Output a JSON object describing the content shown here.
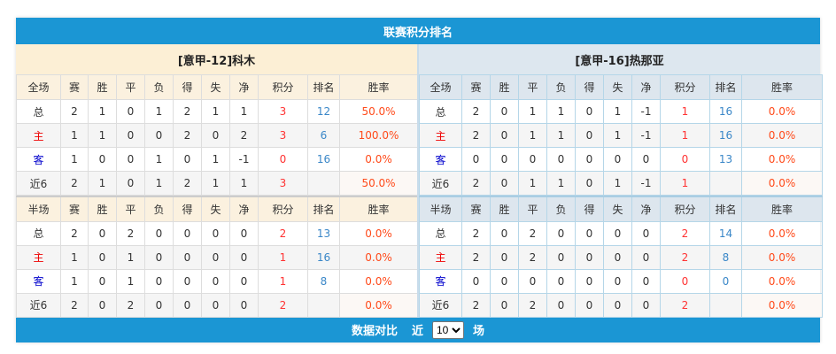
{
  "title": "联赛积分排名",
  "headers": [
    "赛",
    "胜",
    "平",
    "负",
    "得",
    "失",
    "净",
    "积分",
    "排名",
    "胜率"
  ],
  "row_labels": [
    "总",
    "主",
    "客",
    "近6"
  ],
  "teams": [
    {
      "name": "[意甲-12]科木",
      "full": {
        "label": "全场",
        "rows": [
          [
            "2",
            "1",
            "0",
            "1",
            "2",
            "1",
            "1",
            "3",
            "12",
            "50.0%"
          ],
          [
            "1",
            "1",
            "0",
            "0",
            "2",
            "0",
            "2",
            "3",
            "6",
            "100.0%"
          ],
          [
            "1",
            "0",
            "0",
            "1",
            "0",
            "1",
            "-1",
            "0",
            "16",
            "0.0%"
          ],
          [
            "2",
            "1",
            "0",
            "1",
            "2",
            "1",
            "1",
            "3",
            "",
            "50.0%"
          ]
        ]
      },
      "half": {
        "label": "半场",
        "rows": [
          [
            "2",
            "0",
            "2",
            "0",
            "0",
            "0",
            "0",
            "2",
            "13",
            "0.0%"
          ],
          [
            "1",
            "0",
            "1",
            "0",
            "0",
            "0",
            "0",
            "1",
            "16",
            "0.0%"
          ],
          [
            "1",
            "0",
            "1",
            "0",
            "0",
            "0",
            "0",
            "1",
            "8",
            "0.0%"
          ],
          [
            "2",
            "0",
            "2",
            "0",
            "0",
            "0",
            "0",
            "2",
            "",
            "0.0%"
          ]
        ]
      }
    },
    {
      "name": "[意甲-16]热那亚",
      "full": {
        "label": "全场",
        "rows": [
          [
            "2",
            "0",
            "1",
            "1",
            "0",
            "1",
            "-1",
            "1",
            "16",
            "0.0%"
          ],
          [
            "2",
            "0",
            "1",
            "1",
            "0",
            "1",
            "-1",
            "1",
            "16",
            "0.0%"
          ],
          [
            "0",
            "0",
            "0",
            "0",
            "0",
            "0",
            "0",
            "0",
            "13",
            "0.0%"
          ],
          [
            "2",
            "0",
            "1",
            "1",
            "0",
            "1",
            "-1",
            "1",
            "",
            "0.0%"
          ]
        ]
      },
      "half": {
        "label": "半场",
        "rows": [
          [
            "2",
            "0",
            "2",
            "0",
            "0",
            "0",
            "0",
            "2",
            "14",
            "0.0%"
          ],
          [
            "2",
            "0",
            "2",
            "0",
            "0",
            "0",
            "0",
            "2",
            "8",
            "0.0%"
          ],
          [
            "0",
            "0",
            "0",
            "0",
            "0",
            "0",
            "0",
            "0",
            "0",
            "0.0%"
          ],
          [
            "2",
            "0",
            "2",
            "0",
            "0",
            "0",
            "0",
            "2",
            "",
            "0.0%"
          ]
        ]
      }
    }
  ],
  "footer": {
    "label": "数据对比",
    "prefix": "近",
    "selected": "10",
    "suffix": "场"
  }
}
